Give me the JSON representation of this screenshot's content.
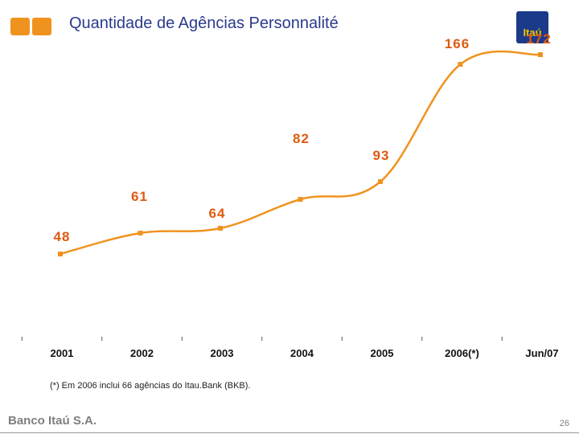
{
  "header": {
    "title": "Quantidade de Agências Personnalité",
    "brand_badge": "Itaú"
  },
  "chart_data": {
    "type": "line",
    "title": "Quantidade de Agências Personnalité",
    "categories": [
      "2001",
      "2002",
      "2003",
      "2004",
      "2005",
      "2006(*)",
      "Jun/07"
    ],
    "values": [
      48,
      61,
      64,
      82,
      93,
      166,
      172
    ],
    "xlabel": "",
    "ylabel": "",
    "ylim": [
      0,
      200
    ],
    "grid": false,
    "legend": "none",
    "line_color": "#f0931e",
    "label_color": "#e05a10"
  },
  "footnote": "(*) Em 2006 inclui 66 agências do Itau.Bank (BKB).",
  "footer": {
    "brand": "Banco Itaú S.A.",
    "page_number": "26"
  },
  "colors": {
    "accent": "#f0931e",
    "title": "#2a3a8c",
    "brand_blue": "#1b3a8a",
    "brand_yellow": "#f5c400"
  }
}
